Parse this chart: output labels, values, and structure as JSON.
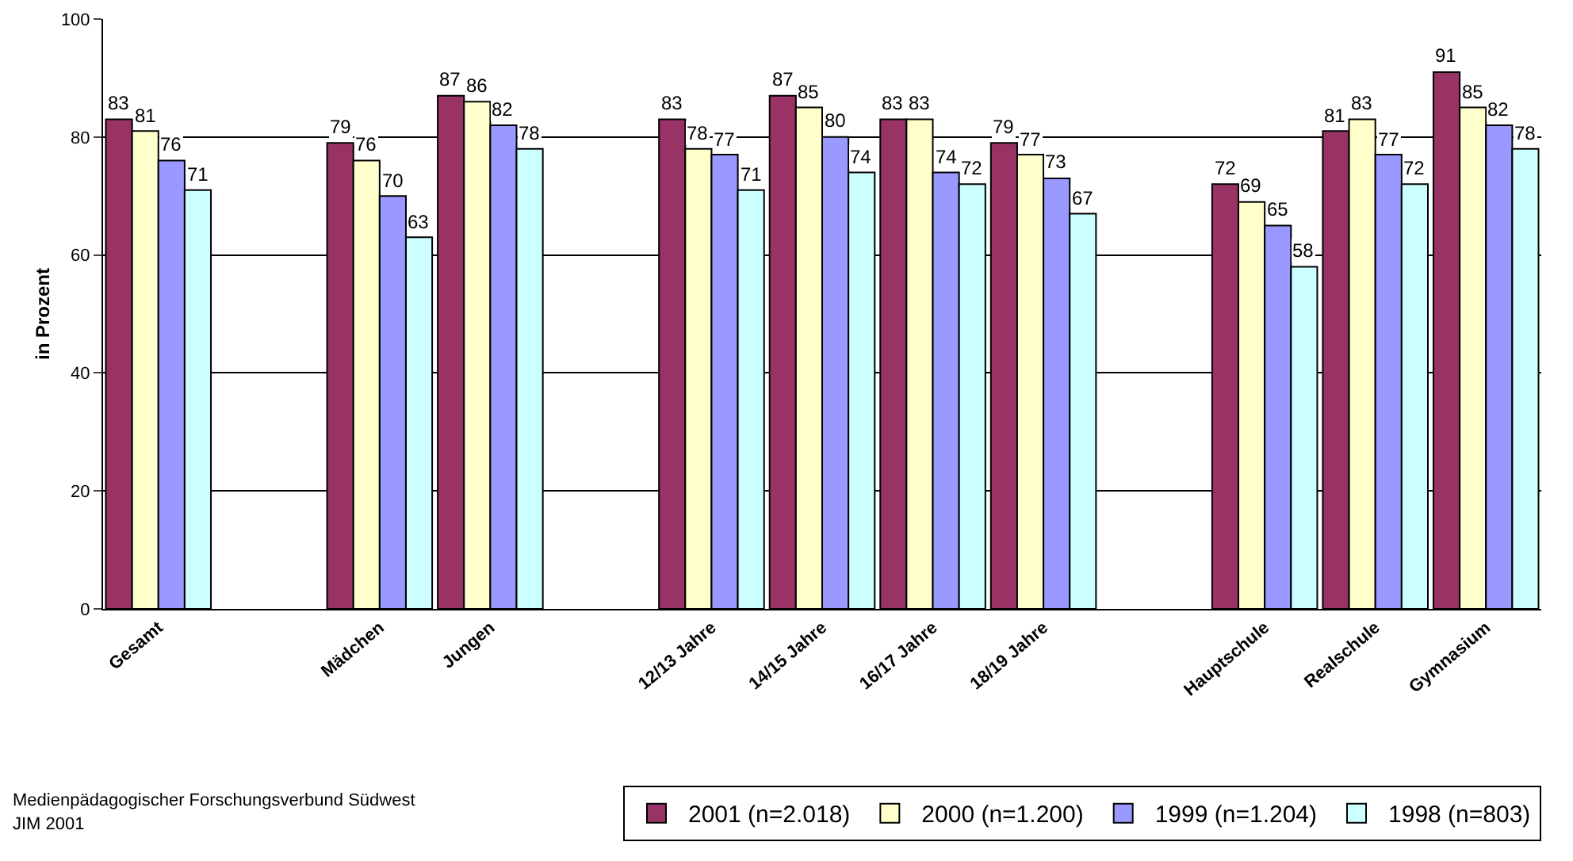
{
  "chart_data": {
    "type": "bar",
    "ylabel": "in Prozent",
    "categories": [
      "Gesamt",
      null,
      "Mädchen",
      "Jungen",
      null,
      "12/13 Jahre",
      "14/15 Jahre",
      "16/17 Jahre",
      "18/19 Jahre",
      null,
      "Hauptschule",
      "Realschule",
      "Gymnasium"
    ],
    "series": [
      {
        "name": "2001 (n=2.018)",
        "color": "#993366",
        "values": [
          83,
          null,
          79,
          87,
          null,
          83,
          87,
          83,
          79,
          null,
          72,
          81,
          91
        ]
      },
      {
        "name": "2000 (n=1.200)",
        "color": "#ffffcc",
        "values": [
          81,
          null,
          76,
          86,
          null,
          78,
          85,
          83,
          77,
          null,
          69,
          83,
          85
        ]
      },
      {
        "name": "1999 (n=1.204)",
        "color": "#9999ff",
        "values": [
          76,
          null,
          70,
          82,
          null,
          77,
          80,
          74,
          73,
          null,
          65,
          77,
          82
        ]
      },
      {
        "name": "1998 (n=803)",
        "color": "#ccffff",
        "values": [
          71,
          null,
          63,
          78,
          null,
          71,
          74,
          72,
          67,
          null,
          58,
          72,
          78
        ]
      }
    ],
    "ylim": [
      0,
      100
    ],
    "yticks": [
      0,
      20,
      40,
      60,
      80,
      100
    ],
    "grid": "y",
    "data_labels": true,
    "legend": "bottom right",
    "annotations": [
      "Medienpädagogischer Forschungsverbund Südwest",
      "JIM 2001"
    ]
  }
}
